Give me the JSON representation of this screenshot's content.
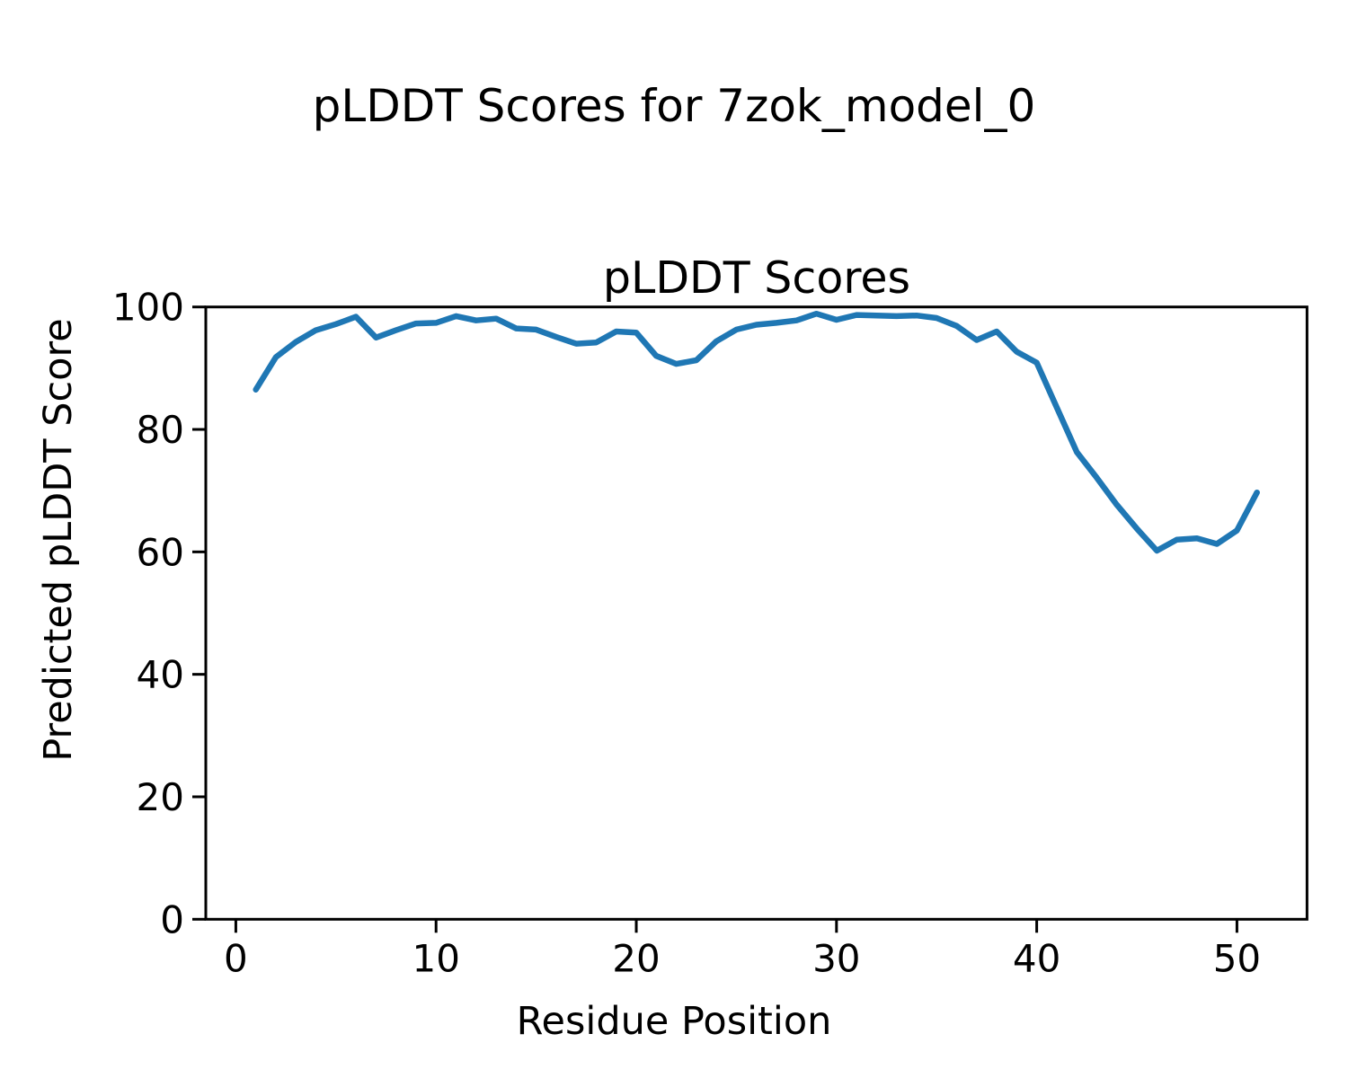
{
  "figure": {
    "suptitle": "pLDDT Scores for 7zok_model_0"
  },
  "chart_data": {
    "type": "line",
    "title": "pLDDT Scores",
    "xlabel": "Residue Position",
    "ylabel": "Predicted pLDDT Score",
    "xlim": [
      -1.5,
      53.5
    ],
    "ylim": [
      0,
      100
    ],
    "x_ticks": [
      0,
      10,
      20,
      30,
      40,
      50
    ],
    "y_ticks": [
      0,
      20,
      40,
      60,
      80,
      100
    ],
    "grid": false,
    "legend": "none",
    "line_color": "#1f77b4",
    "axis_color": "#000000",
    "series": [
      {
        "name": "pLDDT",
        "x": [
          1,
          2,
          3,
          4,
          5,
          6,
          7,
          8,
          9,
          10,
          11,
          12,
          13,
          14,
          15,
          16,
          17,
          18,
          19,
          20,
          21,
          22,
          23,
          24,
          25,
          26,
          27,
          28,
          29,
          30,
          31,
          32,
          33,
          34,
          35,
          36,
          37,
          38,
          39,
          40,
          41,
          42,
          43,
          44,
          45,
          46,
          47,
          48,
          49,
          50,
          51
        ],
        "values": [
          86.5,
          91.8,
          94.3,
          96.2,
          97.2,
          98.4,
          95.0,
          96.2,
          97.3,
          97.4,
          98.5,
          97.8,
          98.1,
          96.5,
          96.3,
          95.1,
          94.0,
          94.2,
          96.0,
          95.8,
          92.0,
          90.7,
          91.3,
          94.4,
          96.3,
          97.1,
          97.4,
          97.8,
          98.9,
          97.9,
          98.7,
          98.6,
          98.5,
          98.6,
          98.2,
          96.9,
          94.6,
          96.0,
          92.7,
          90.9,
          83.6,
          76.3,
          72.1,
          67.7,
          63.8,
          60.2,
          62.0,
          62.2,
          61.3,
          63.5,
          69.7
        ]
      }
    ]
  }
}
